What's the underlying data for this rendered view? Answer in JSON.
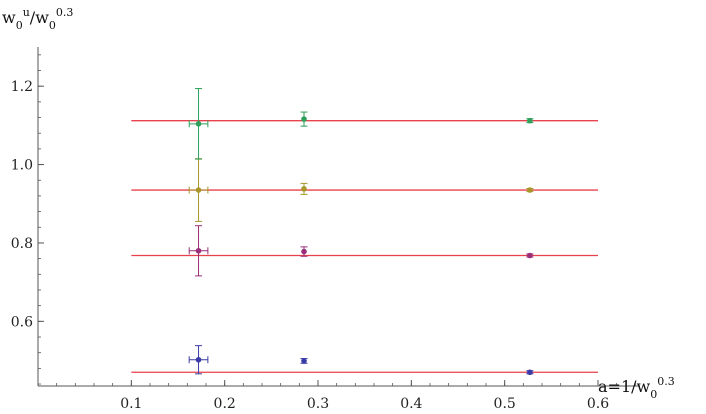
{
  "chart_data": {
    "type": "scatter",
    "title": "",
    "xlabel": {
      "main": "a=1/w",
      "sub": "0",
      "sup": "0.3"
    },
    "ylabel": {
      "w": "w",
      "sub1": "0",
      "sup1": "u",
      "mid": "/w",
      "sub2": "0",
      "sup2": "0.3"
    },
    "xlim": [
      0.0,
      0.645
    ],
    "ylim": [
      0.435,
      1.3
    ],
    "xticks": [
      0.1,
      0.2,
      0.3,
      0.4,
      0.5,
      0.6
    ],
    "xtick_labels": [
      "0.1",
      "0.2",
      "0.3",
      "0.4",
      "0.5",
      "0.6"
    ],
    "xminor_step": 0.02,
    "yticks": [
      0.6,
      0.8,
      1.0,
      1.2
    ],
    "ytick_labels": [
      "0.6",
      "0.8",
      "1.0",
      "1.2"
    ],
    "yminor_step": 0.04,
    "grid": false,
    "fit_lines": [
      {
        "x": [
          0.1,
          0.6
        ],
        "y": 0.47,
        "color": "#e8414b"
      },
      {
        "x": [
          0.1,
          0.6
        ],
        "y": 0.768,
        "color": "#e8414b"
      },
      {
        "x": [
          0.1,
          0.6
        ],
        "y": 0.935,
        "color": "#e8414b"
      },
      {
        "x": [
          0.1,
          0.6
        ],
        "y": 1.112,
        "color": "#e8414b"
      }
    ],
    "series": [
      {
        "color": "#3b3ba8",
        "marker": "circle",
        "points": [
          {
            "x": 0.172,
            "y": 0.502,
            "yerr": 0.036,
            "xerr": 0.01
          },
          {
            "x": 0.285,
            "y": 0.499,
            "yerr": 0.006,
            "xerr": 0.0
          },
          {
            "x": 0.527,
            "y": 0.47,
            "yerr": 0.004,
            "xerr": 0.0
          }
        ]
      },
      {
        "color": "#9b2e78",
        "marker": "circle",
        "points": [
          {
            "x": 0.172,
            "y": 0.78,
            "yerr": 0.064,
            "xerr": 0.01
          },
          {
            "x": 0.285,
            "y": 0.778,
            "yerr": 0.012,
            "xerr": 0.0
          },
          {
            "x": 0.527,
            "y": 0.768,
            "yerr": 0.004,
            "xerr": 0.0
          }
        ]
      },
      {
        "color": "#a8962a",
        "marker": "circle",
        "points": [
          {
            "x": 0.172,
            "y": 0.935,
            "yerr": 0.08,
            "xerr": 0.01
          },
          {
            "x": 0.285,
            "y": 0.938,
            "yerr": 0.014,
            "xerr": 0.0
          },
          {
            "x": 0.527,
            "y": 0.935,
            "yerr": 0.004,
            "xerr": 0.0
          }
        ]
      },
      {
        "color": "#2e9e5a",
        "marker": "circle",
        "points": [
          {
            "x": 0.172,
            "y": 1.104,
            "yerr": 0.09,
            "xerr": 0.01
          },
          {
            "x": 0.285,
            "y": 1.116,
            "yerr": 0.018,
            "xerr": 0.0
          },
          {
            "x": 0.527,
            "y": 1.112,
            "yerr": 0.005,
            "xerr": 0.0
          }
        ]
      }
    ]
  }
}
